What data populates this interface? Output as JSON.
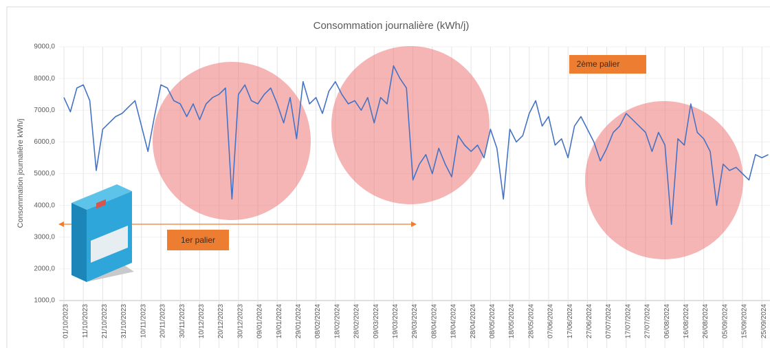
{
  "chart_data": {
    "type": "line",
    "title": "Consommation journalière (kWh/j)",
    "y_label": "Consommation journalière kWh/j",
    "categories": [
      "01/10/2023",
      null,
      null,
      "11/10/2023",
      null,
      null,
      "21/10/2023",
      null,
      null,
      "31/10/2023",
      null,
      null,
      "10/11/2023",
      null,
      null,
      "20/11/2023",
      null,
      null,
      "30/11/2023",
      null,
      null,
      "10/12/2023",
      null,
      null,
      "20/12/2023",
      null,
      null,
      "30/12/2023",
      null,
      null,
      "09/01/2024",
      null,
      null,
      "19/01/2024",
      null,
      null,
      "29/01/2024",
      null,
      null,
      "08/02/2024",
      null,
      null,
      "18/02/2024",
      null,
      null,
      "28/02/2024",
      null,
      null,
      "09/03/2024",
      null,
      null,
      "19/03/2024",
      null,
      null,
      "29/03/2024",
      null,
      null,
      "08/04/2024",
      null,
      null,
      "18/04/2024",
      null,
      null,
      "28/04/2024",
      null,
      null,
      "08/05/2024",
      null,
      null,
      "18/05/2024",
      null,
      null,
      "28/05/2024",
      null,
      null,
      "07/06/2024",
      null,
      null,
      "17/06/2024",
      null,
      null,
      "27/06/2024",
      null,
      null,
      "07/07/2024",
      null,
      null,
      "17/07/2024",
      null,
      null,
      "27/07/2024",
      null,
      null,
      "06/08/2024",
      null,
      null,
      "16/08/2024",
      null,
      null,
      "26/08/2024",
      null,
      null,
      "05/09/2024",
      null,
      null,
      "15/09/2024",
      null,
      null,
      "25/09/2024",
      null
    ],
    "series": [
      {
        "name": "Consommation journalière (kWh/j)",
        "color": "#4472c4",
        "values": [
          7400,
          6950,
          7700,
          7800,
          7300,
          5100,
          6400,
          6600,
          6800,
          6900,
          7100,
          7300,
          6500,
          5700,
          6800,
          7800,
          7700,
          7300,
          7200,
          6800,
          7200,
          6700,
          7200,
          7400,
          7500,
          7700,
          4200,
          7500,
          7800,
          7300,
          7200,
          7500,
          7700,
          7200,
          6600,
          7400,
          6100,
          7900,
          7200,
          7400,
          6900,
          7600,
          7900,
          7500,
          7200,
          7300,
          7000,
          7400,
          6600,
          7400,
          7200,
          8400,
          8000,
          7700,
          4800,
          5300,
          5600,
          5000,
          5800,
          5300,
          4900,
          6200,
          5900,
          5700,
          5900,
          5500,
          6400,
          5800,
          4200,
          6400,
          6000,
          6200,
          6900,
          7300,
          6500,
          6800,
          5900,
          6100,
          5500,
          6500,
          6800,
          6400,
          6000,
          5400,
          5800,
          6300,
          6500,
          6900,
          6700,
          6500,
          6300,
          5700,
          6300,
          5900,
          3400,
          6100,
          5900,
          7200,
          6300,
          6100,
          5700,
          4000,
          5300,
          5100,
          5200,
          5000,
          4800,
          5600,
          5500,
          5600
        ]
      }
    ],
    "ylim": [
      1000,
      9000
    ],
    "yticks": [
      {
        "value": 1000,
        "label": "1000,0"
      },
      {
        "value": 2000,
        "label": "2000,0"
      },
      {
        "value": 3000,
        "label": "3000,0"
      },
      {
        "value": 4000,
        "label": "4000,0"
      },
      {
        "value": 5000,
        "label": "5000,0"
      },
      {
        "value": 6000,
        "label": "6000,0"
      },
      {
        "value": 7000,
        "label": "7000,0"
      },
      {
        "value": 8000,
        "label": "8000,0"
      },
      {
        "value": 9000,
        "label": "9000,0"
      }
    ],
    "grid": true,
    "annotations": [
      "1er palier",
      "2ème palier"
    ]
  }
}
